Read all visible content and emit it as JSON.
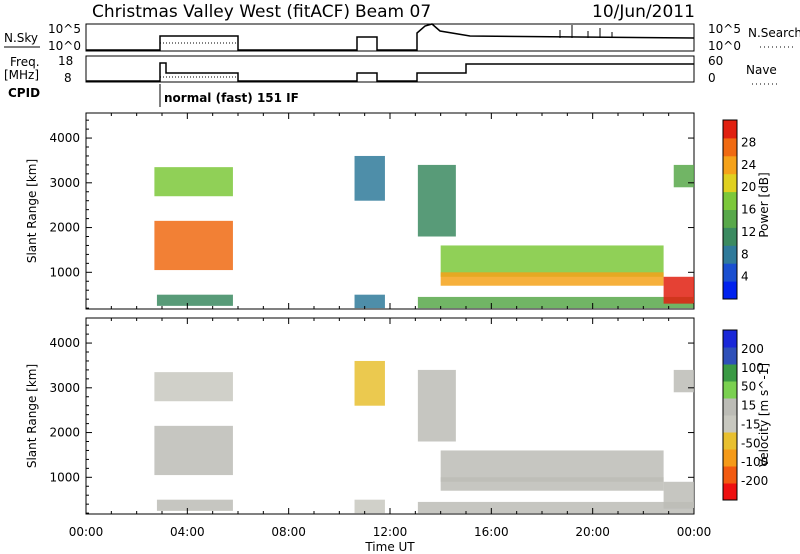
{
  "header": {
    "station": "Christmas Valley West (fitACF)",
    "beam": "Beam 07",
    "date": "10/Jun/2011"
  },
  "status_panels": {
    "nsky_label": "N.Sky",
    "nsearch_label": "N.Search",
    "nsky_ticks": [
      "10^5",
      "10^0"
    ],
    "nsearch_ticks": [
      "10^5",
      "10^0"
    ],
    "freq_label_line1": "Freq.",
    "freq_label_line2": "[MHz]",
    "freq_ticks": [
      "18",
      "8"
    ],
    "nave_label": "Nave",
    "nave_ticks": [
      "60",
      "0"
    ],
    "cpid_label": "CPID",
    "cpid_text": "normal (fast) 151 IF"
  },
  "colors": {
    "power_scale": [
      "#0022ee",
      "#1a4fd0",
      "#2f7a9a",
      "#3b8a60",
      "#58a84a",
      "#7cc83a",
      "#e0d020",
      "#f5a21a",
      "#f06a12",
      "#e02010"
    ],
    "velocity_scale": [
      "#ee1010",
      "#f25a10",
      "#f59a18",
      "#e8c030",
      "#c8c8c0",
      "#bcbcb6",
      "#7ad050",
      "#3a9a44",
      "#2f50b8",
      "#1a28d8"
    ],
    "ground_scatter": "#c0c0b8"
  },
  "chart_data": [
    {
      "type": "heatmap",
      "title": "",
      "xlabel": "Time UT",
      "ylabel": "Slant Range [km]",
      "x_ticks": [
        "00:00",
        "04:00",
        "08:00",
        "12:00",
        "16:00",
        "20:00",
        "00:00"
      ],
      "x_range_hours": [
        0,
        24
      ],
      "y_ticks": [
        1000,
        2000,
        3000,
        4000
      ],
      "y_range_km": [
        180,
        4560
      ],
      "colorbar": {
        "label": "Power [dB]",
        "ticks": [
          4,
          8,
          12,
          16,
          20,
          24,
          28
        ],
        "range": [
          0,
          30
        ]
      },
      "echo_regions": [
        {
          "t_start": 2.7,
          "t_end": 5.8,
          "r_min": 1050,
          "r_max": 2150,
          "value": 26
        },
        {
          "t_start": 2.7,
          "t_end": 5.8,
          "r_min": 2700,
          "r_max": 3350,
          "value": 16
        },
        {
          "t_start": 2.8,
          "t_end": 5.8,
          "r_min": 250,
          "r_max": 500,
          "value": 10
        },
        {
          "t_start": 10.6,
          "t_end": 11.8,
          "r_min": 2600,
          "r_max": 3600,
          "value": 6
        },
        {
          "t_start": 10.6,
          "t_end": 11.8,
          "r_min": 200,
          "r_max": 500,
          "value": 8
        },
        {
          "t_start": 13.1,
          "t_end": 14.6,
          "r_min": 1800,
          "r_max": 3400,
          "value": 9
        },
        {
          "t_start": 14.0,
          "t_end": 22.8,
          "r_min": 900,
          "r_max": 1600,
          "value": 16
        },
        {
          "t_start": 14.0,
          "t_end": 22.8,
          "r_min": 700,
          "r_max": 1000,
          "value": 22
        },
        {
          "t_start": 13.1,
          "t_end": 24.0,
          "r_min": 200,
          "r_max": 450,
          "value": 14
        },
        {
          "t_start": 22.8,
          "t_end": 24.0,
          "r_min": 300,
          "r_max": 900,
          "value": 28
        },
        {
          "t_start": 23.2,
          "t_end": 24.0,
          "r_min": 2900,
          "r_max": 3400,
          "value": 14
        }
      ]
    },
    {
      "type": "heatmap",
      "title": "",
      "xlabel": "Time UT",
      "ylabel": "Slant Range [km]",
      "x_ticks": [
        "00:00",
        "04:00",
        "08:00",
        "12:00",
        "16:00",
        "20:00",
        "00:00"
      ],
      "x_range_hours": [
        0,
        24
      ],
      "y_ticks": [
        1000,
        2000,
        3000,
        4000
      ],
      "y_range_km": [
        180,
        4560
      ],
      "colorbar": {
        "label": "Velocity [m s^-1]",
        "ticks": [
          -200,
          -100,
          -50,
          -15,
          15,
          50,
          100,
          200
        ],
        "range": [
          -250,
          250
        ]
      },
      "echo_regions": [
        {
          "t_start": 2.7,
          "t_end": 5.8,
          "r_min": 1050,
          "r_max": 2150,
          "value": 0
        },
        {
          "t_start": 2.7,
          "t_end": 5.8,
          "r_min": 2700,
          "r_max": 3350,
          "value": -40
        },
        {
          "t_start": 2.8,
          "t_end": 5.8,
          "r_min": 250,
          "r_max": 500,
          "value": 30
        },
        {
          "t_start": 10.6,
          "t_end": 11.8,
          "r_min": 2600,
          "r_max": 3600,
          "value": -60
        },
        {
          "t_start": 10.6,
          "t_end": 11.8,
          "r_min": 200,
          "r_max": 500,
          "value": -40
        },
        {
          "t_start": 13.1,
          "t_end": 14.6,
          "r_min": 1800,
          "r_max": 3400,
          "value": 30
        },
        {
          "t_start": 14.0,
          "t_end": 22.8,
          "r_min": 900,
          "r_max": 1600,
          "value": 0
        },
        {
          "t_start": 14.0,
          "t_end": 22.8,
          "r_min": 700,
          "r_max": 1000,
          "value": 0
        },
        {
          "t_start": 13.1,
          "t_end": 24.0,
          "r_min": 200,
          "r_max": 450,
          "value": 35
        },
        {
          "t_start": 22.8,
          "t_end": 24.0,
          "r_min": 300,
          "r_max": 900,
          "value": 0
        },
        {
          "t_start": 23.2,
          "t_end": 24.0,
          "r_min": 2900,
          "r_max": 3400,
          "value": 0
        }
      ]
    }
  ]
}
